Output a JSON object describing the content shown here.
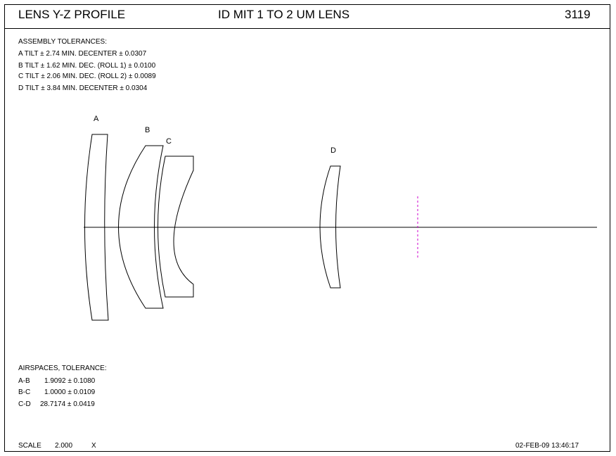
{
  "header": {
    "left_title": "LENS Y-Z PROFILE",
    "center_title": "ID MIT 1 TO 2 UM LENS",
    "number": "3119"
  },
  "assembly": {
    "heading": "ASSEMBLY TOLERANCES:",
    "lines": [
      "A TILT ±  2.74 MIN. DECENTER ±   0.0307",
      "B TILT ±  1.62 MIN. DEC. (ROLL 1) ± 0.0100",
      "C TILT ±  2.06 MIN. DEC. (ROLL 2) ± 0.0089",
      "D TILT ±  3.84 MIN. DECENTER ±   0.0304"
    ]
  },
  "lens_labels": {
    "a": "A",
    "b": "B",
    "c": "C",
    "d": "D"
  },
  "airspaces": {
    "heading": "AIRSPACES, TOLERANCE:",
    "rows": [
      {
        "pair": "A-B",
        "value": "1.9092 ±  0.1080"
      },
      {
        "pair": "B-C",
        "value": "1.0000 ±  0.0109"
      },
      {
        "pair": "C-D",
        "value": "28.7174 ±  0.0419"
      }
    ]
  },
  "footer": {
    "scale_label": "SCALE",
    "scale_value": "2.000",
    "scale_unit": "X",
    "timestamp": "02-FEB-09  13:46:17"
  },
  "colors": {
    "line": "#000000",
    "image_plane": "#cc00cc"
  }
}
